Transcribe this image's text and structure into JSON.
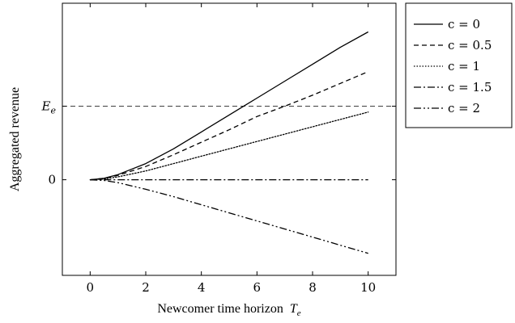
{
  "chart_data": {
    "type": "line",
    "xlabel": "Newcomer time horizon",
    "xlabel_symbol": "T",
    "xlabel_subscript": "e",
    "ylabel": "Aggregated revenue",
    "xlim": [
      -1,
      11
    ],
    "ylim": [
      -1.3,
      2.4
    ],
    "x_ticks": [
      0,
      2,
      4,
      6,
      8,
      10
    ],
    "x_tick_labels": [
      "0",
      "2",
      "4",
      "6",
      "8",
      "10"
    ],
    "y_ticks": [
      {
        "value": 0,
        "label": "0"
      },
      {
        "value": 1,
        "label": "E",
        "subscript": "e"
      }
    ],
    "reference_lines": [
      {
        "y": 1,
        "style": "dashed",
        "label": "E_e"
      }
    ],
    "legend_position": "outside-right",
    "series": [
      {
        "name": "c = 0",
        "style": "solid",
        "x": [
          0,
          0.5,
          1,
          2,
          3,
          4,
          5,
          6,
          7,
          8,
          9,
          10
        ],
        "y": [
          0,
          0.02,
          0.07,
          0.22,
          0.42,
          0.65,
          0.88,
          1.11,
          1.34,
          1.57,
          1.8,
          2.01
        ]
      },
      {
        "name": "c = 0.5",
        "style": "dashed",
        "x": [
          0,
          0.5,
          1,
          2,
          3,
          4,
          5,
          6,
          7,
          8,
          9,
          10
        ],
        "y": [
          0,
          0.02,
          0.06,
          0.18,
          0.34,
          0.51,
          0.68,
          0.86,
          1.0,
          1.15,
          1.31,
          1.47
        ]
      },
      {
        "name": "c = 1",
        "style": "dotted",
        "x": [
          0,
          0.5,
          1,
          2,
          3,
          4,
          5,
          6,
          7,
          8,
          9,
          10
        ],
        "y": [
          0,
          0.01,
          0.04,
          0.12,
          0.22,
          0.32,
          0.42,
          0.52,
          0.62,
          0.72,
          0.82,
          0.92
        ]
      },
      {
        "name": "c = 1.5",
        "style": "dash-dot",
        "x": [
          0,
          0.5,
          1,
          2,
          3,
          4,
          5,
          6,
          7,
          8,
          9,
          10
        ],
        "y": [
          0,
          0,
          0,
          0,
          0,
          0,
          0,
          0,
          0,
          0,
          0,
          0
        ]
      },
      {
        "name": "c = 2",
        "style": "dash-dot-dot",
        "x": [
          0,
          0.5,
          1,
          2,
          3,
          4,
          5,
          6,
          7,
          8,
          9,
          10
        ],
        "y": [
          0,
          -0.01,
          -0.04,
          -0.13,
          -0.23,
          -0.34,
          -0.45,
          -0.56,
          -0.67,
          -0.78,
          -0.89,
          -1.0
        ]
      }
    ]
  }
}
